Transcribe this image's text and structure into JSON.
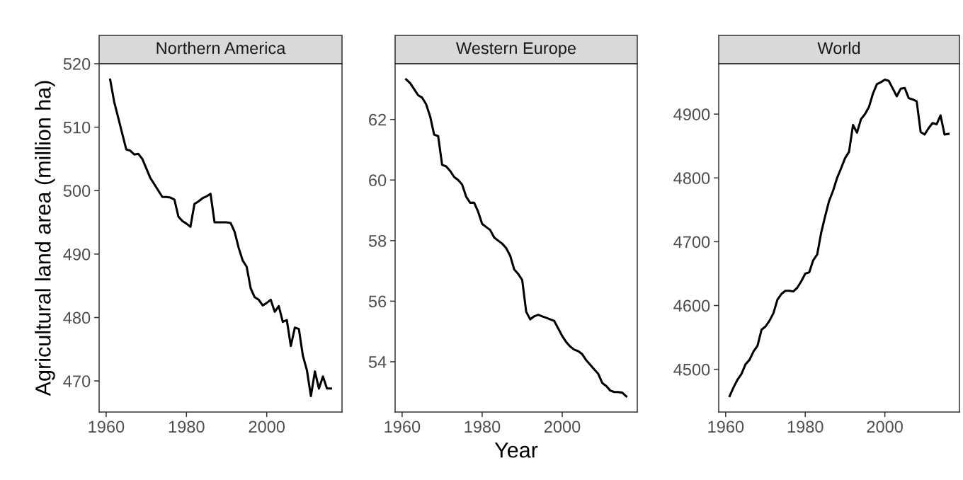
{
  "chart_data": [
    {
      "type": "line",
      "title": "Northern America",
      "ylabel": "Agricultural land area (million ha)",
      "grid": false,
      "line_style": "solid",
      "marker": "none",
      "x": [
        1961,
        1962,
        1963,
        1964,
        1965,
        1966,
        1967,
        1968,
        1969,
        1970,
        1971,
        1972,
        1973,
        1974,
        1975,
        1976,
        1977,
        1978,
        1979,
        1980,
        1981,
        1982,
        1983,
        1984,
        1985,
        1986,
        1987,
        1988,
        1989,
        1990,
        1991,
        1992,
        1993,
        1994,
        1995,
        1996,
        1997,
        1998,
        1999,
        2000,
        2001,
        2002,
        2003,
        2004,
        2005,
        2006,
        2007,
        2008,
        2009,
        2010,
        2011,
        2012,
        2013,
        2014,
        2015,
        2016
      ],
      "series": [
        {
          "color": "#000000",
          "values": [
            517.5,
            514,
            511.5,
            509,
            506.5,
            506.3,
            505.7,
            505.8,
            505,
            503.5,
            502,
            501,
            500,
            499,
            499,
            498.9,
            498.6,
            495.9,
            495.2,
            494.8,
            494.3,
            497.9,
            498.3,
            498.8,
            499.1,
            499.5,
            495,
            495,
            495,
            495,
            494.9,
            493.5,
            491,
            489,
            488,
            484.6,
            483.2,
            482.8,
            481.9,
            482.3,
            482.8,
            480.9,
            481.8,
            479.3,
            479.6,
            475.5,
            478.4,
            478.2,
            474,
            471.7,
            467.6,
            471.5,
            468.8,
            470.7,
            468.8,
            468.8
          ]
        }
      ],
      "xlim": [
        1958.25,
        2018.75
      ],
      "xticks": [
        1960,
        1980,
        2000
      ],
      "ylim": [
        465.1,
        520
      ],
      "yticks": [
        470,
        480,
        490,
        500,
        510,
        520
      ]
    },
    {
      "type": "line",
      "title": "Western Europe",
      "xlabel": "Year",
      "grid": false,
      "line_style": "solid",
      "marker": "none",
      "x": [
        1961,
        1962,
        1963,
        1964,
        1965,
        1966,
        1967,
        1968,
        1969,
        1970,
        1971,
        1972,
        1973,
        1974,
        1975,
        1976,
        1977,
        1978,
        1979,
        1980,
        1981,
        1982,
        1983,
        1984,
        1985,
        1986,
        1987,
        1988,
        1989,
        1990,
        1991,
        1992,
        1993,
        1994,
        1995,
        1996,
        1997,
        1998,
        1999,
        2000,
        2001,
        2002,
        2003,
        2004,
        2005,
        2006,
        2007,
        2008,
        2009,
        2010,
        2011,
        2012,
        2013,
        2014,
        2015,
        2016
      ],
      "series": [
        {
          "color": "#000000",
          "values": [
            63.32,
            63.2,
            63.0,
            62.8,
            62.72,
            62.5,
            62.1,
            61.5,
            61.45,
            60.5,
            60.45,
            60.3,
            60.1,
            60.0,
            59.85,
            59.45,
            59.25,
            59.25,
            58.95,
            58.55,
            58.45,
            58.35,
            58.1,
            58.0,
            57.9,
            57.75,
            57.5,
            57.05,
            56.9,
            56.7,
            55.65,
            55.4,
            55.5,
            55.55,
            55.5,
            55.45,
            55.4,
            55.35,
            55.1,
            54.85,
            54.65,
            54.5,
            54.4,
            54.35,
            54.25,
            54.05,
            53.9,
            53.75,
            53.6,
            53.3,
            53.2,
            53.05,
            53.0,
            53.0,
            52.98,
            52.86
          ]
        }
      ],
      "xlim": [
        1958.25,
        2018.75
      ],
      "xticks": [
        1960,
        1980,
        2000
      ],
      "ylim": [
        52.34,
        63.84
      ],
      "yticks": [
        54,
        56,
        58,
        60,
        62
      ]
    },
    {
      "type": "line",
      "title": "World",
      "grid": false,
      "line_style": "solid",
      "marker": "none",
      "x": [
        1961,
        1962,
        1963,
        1964,
        1965,
        1966,
        1967,
        1968,
        1969,
        1970,
        1971,
        1972,
        1973,
        1974,
        1975,
        1976,
        1977,
        1978,
        1979,
        1980,
        1981,
        1982,
        1983,
        1984,
        1985,
        1986,
        1987,
        1988,
        1989,
        1990,
        1991,
        1992,
        1993,
        1994,
        1995,
        1996,
        1997,
        1998,
        1999,
        2000,
        2001,
        2002,
        2003,
        2004,
        2005,
        2006,
        2007,
        2008,
        2009,
        2010,
        2011,
        2012,
        2013,
        2014,
        2015,
        2016
      ],
      "series": [
        {
          "color": "#000000",
          "values": [
            4458,
            4472,
            4484,
            4493,
            4508,
            4515,
            4528,
            4537,
            4562,
            4567,
            4576,
            4588,
            4609,
            4618,
            4623,
            4623,
            4622,
            4628,
            4638,
            4650,
            4652,
            4671,
            4680,
            4714,
            4740,
            4764,
            4780,
            4800,
            4815,
            4831,
            4841,
            4883,
            4871,
            4892,
            4900,
            4911,
            4932,
            4947,
            4950,
            4954,
            4952,
            4940,
            4928,
            4940,
            4941,
            4925,
            4923,
            4920,
            4872,
            4868,
            4878,
            4886,
            4884,
            4898,
            4868,
            4869
          ]
        }
      ],
      "xlim": [
        1958.25,
        2018.75
      ],
      "xticks": [
        1960,
        1980,
        2000
      ],
      "ylim": [
        4433,
        4979
      ],
      "yticks": [
        4500,
        4600,
        4700,
        4800,
        4900
      ]
    }
  ]
}
